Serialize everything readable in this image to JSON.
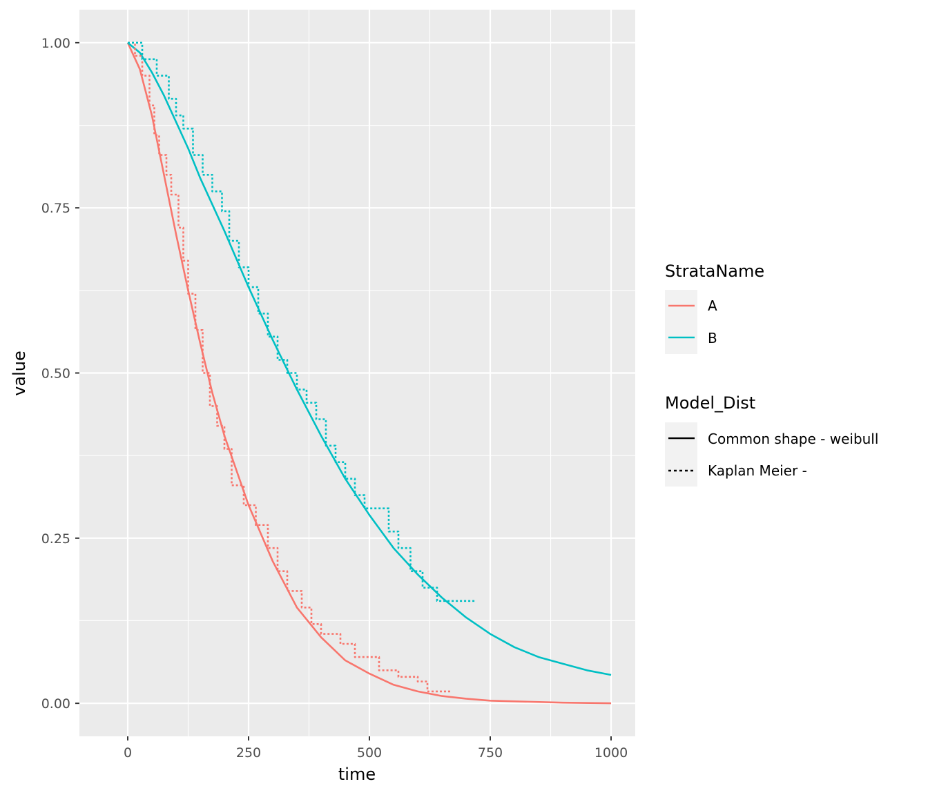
{
  "chart_data": {
    "type": "line",
    "xlabel": "time",
    "ylabel": "value",
    "xlim": [
      -100,
      1050
    ],
    "ylim": [
      -0.05,
      1.05
    ],
    "x_ticks": [
      0,
      250,
      500,
      750,
      1000
    ],
    "x_tick_labels": [
      "0",
      "250",
      "500",
      "750",
      "1000"
    ],
    "y_ticks": [
      0,
      0.25,
      0.5,
      0.75,
      1.0
    ],
    "y_tick_labels": [
      "0.00",
      "0.25",
      "0.50",
      "0.75",
      "1.00"
    ],
    "grid": true,
    "legend_placement": "right",
    "legends": [
      {
        "title": "StrataName",
        "entries": [
          {
            "label": "A",
            "color": "#F8766D",
            "linetype": "solid"
          },
          {
            "label": "B",
            "color": "#00BFC4",
            "linetype": "solid"
          }
        ]
      },
      {
        "title": "Model_Dist",
        "entries": [
          {
            "label": "Common shape - weibull",
            "color": "#000000",
            "linetype": "solid"
          },
          {
            "label": "Kaplan Meier -",
            "color": "#000000",
            "linetype": "dotted"
          }
        ]
      }
    ],
    "series": [
      {
        "strata": "A",
        "model": "Common shape - weibull",
        "color": "#F8766D",
        "linetype": "solid",
        "x": [
          0,
          25,
          50,
          75,
          100,
          125,
          150,
          175,
          200,
          250,
          300,
          350,
          400,
          450,
          500,
          550,
          600,
          650,
          700,
          750,
          800,
          900,
          1000
        ],
        "y": [
          1.0,
          0.96,
          0.89,
          0.8,
          0.71,
          0.625,
          0.545,
          0.47,
          0.405,
          0.3,
          0.215,
          0.145,
          0.1,
          0.065,
          0.045,
          0.028,
          0.018,
          0.011,
          0.007,
          0.004,
          0.003,
          0.001,
          0.0
        ]
      },
      {
        "strata": "B",
        "model": "Common shape - weibull",
        "color": "#00BFC4",
        "linetype": "solid",
        "x": [
          0,
          25,
          50,
          75,
          100,
          125,
          150,
          200,
          250,
          300,
          350,
          400,
          450,
          500,
          550,
          600,
          650,
          700,
          750,
          800,
          850,
          900,
          950,
          1000
        ],
        "y": [
          1.0,
          0.985,
          0.955,
          0.92,
          0.88,
          0.84,
          0.795,
          0.715,
          0.63,
          0.55,
          0.475,
          0.405,
          0.34,
          0.285,
          0.235,
          0.195,
          0.16,
          0.13,
          0.105,
          0.085,
          0.07,
          0.06,
          0.05,
          0.043
        ]
      },
      {
        "strata": "A",
        "model": "Kaplan Meier -",
        "color": "#F8766D",
        "linetype": "dotted",
        "x": [
          0,
          15,
          30,
          45,
          55,
          65,
          80,
          90,
          105,
          115,
          125,
          140,
          155,
          170,
          185,
          200,
          215,
          240,
          265,
          290,
          310,
          330,
          360,
          380,
          400,
          440,
          470,
          520,
          560,
          600,
          620,
          670
        ],
        "y": [
          1.0,
          0.98,
          0.95,
          0.905,
          0.86,
          0.83,
          0.8,
          0.77,
          0.72,
          0.67,
          0.62,
          0.565,
          0.5,
          0.45,
          0.42,
          0.385,
          0.33,
          0.3,
          0.27,
          0.235,
          0.2,
          0.17,
          0.145,
          0.12,
          0.105,
          0.09,
          0.07,
          0.05,
          0.04,
          0.033,
          0.018,
          0.018
        ]
      },
      {
        "strata": "B",
        "model": "Kaplan Meier -",
        "color": "#00BFC4",
        "linetype": "dotted",
        "x": [
          0,
          30,
          60,
          85,
          100,
          115,
          135,
          155,
          175,
          195,
          210,
          230,
          250,
          270,
          290,
          310,
          330,
          350,
          370,
          390,
          410,
          430,
          450,
          470,
          490,
          540,
          560,
          585,
          610,
          640,
          720
        ],
        "y": [
          1.0,
          0.975,
          0.95,
          0.915,
          0.89,
          0.87,
          0.83,
          0.8,
          0.775,
          0.745,
          0.7,
          0.66,
          0.63,
          0.59,
          0.555,
          0.52,
          0.5,
          0.475,
          0.455,
          0.43,
          0.39,
          0.365,
          0.34,
          0.315,
          0.295,
          0.26,
          0.235,
          0.2,
          0.175,
          0.155,
          0.155
        ]
      }
    ]
  }
}
